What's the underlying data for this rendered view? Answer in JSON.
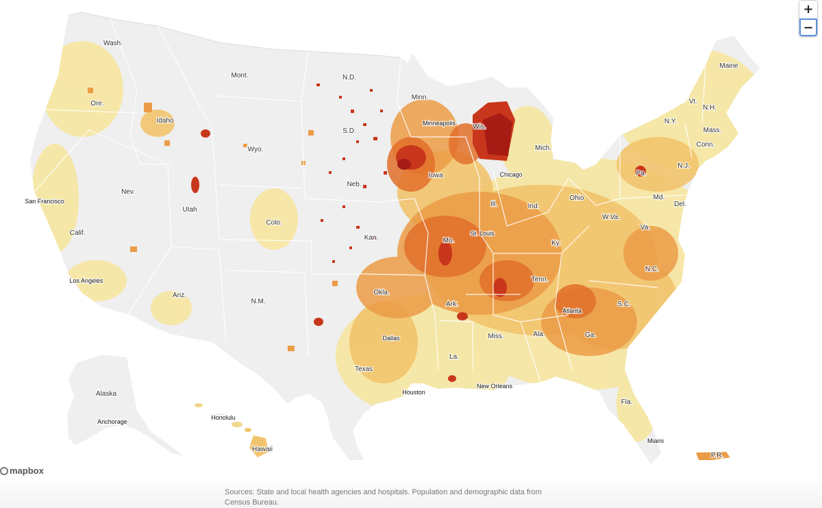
{
  "map": {
    "style": "county-level choropleth",
    "colors": {
      "background": "#ffffff",
      "land_no_data": "#efefef",
      "border": "#ffffff",
      "scale": [
        "#f5e6a3",
        "#f2c46d",
        "#ec9c46",
        "#e2702b",
        "#c8361b",
        "#a61c15"
      ]
    },
    "state_labels": [
      "Wash.",
      "Ore.",
      "Idaho",
      "Mont.",
      "N.D.",
      "Minn.",
      "Wis.",
      "S.D.",
      "Wyo.",
      "Nev.",
      "Calif.",
      "Utah",
      "Colo.",
      "Neb.",
      "Iowa",
      "Mich.",
      "Maine",
      "Vt.",
      "N.H.",
      "N.Y.",
      "Mass.",
      "Conn.",
      "N.J.",
      "Pa.",
      "Ohio",
      "Ind.",
      "Ill.",
      "Md.",
      "Del.",
      "W.Va.",
      "Va.",
      "Kan.",
      "Mo.",
      "Ky.",
      "Ariz.",
      "N.M.",
      "Okla.",
      "Ark.",
      "Tenn.",
      "N.C.",
      "S.C.",
      "Miss.",
      "Ala.",
      "Ga.",
      "La.",
      "Texas",
      "Fla.",
      "Alaska",
      "Hawaii",
      "P.R."
    ],
    "city_labels": [
      "San Francisco",
      "Los Angeles",
      "Minneapolis",
      "Chicago",
      "St. Louis",
      "Atlanta",
      "Dallas",
      "Houston",
      "New Orleans",
      "Miami",
      "Anchorage",
      "Honolulu"
    ]
  },
  "controls": {
    "zoom_in": "+",
    "zoom_out": "−"
  },
  "attribution": {
    "brand": "mapbox",
    "icon": "mapbox-logo-icon"
  },
  "source_note": "Sources: State and local health agencies and hospitals. Population and demographic data from Census Bureau."
}
